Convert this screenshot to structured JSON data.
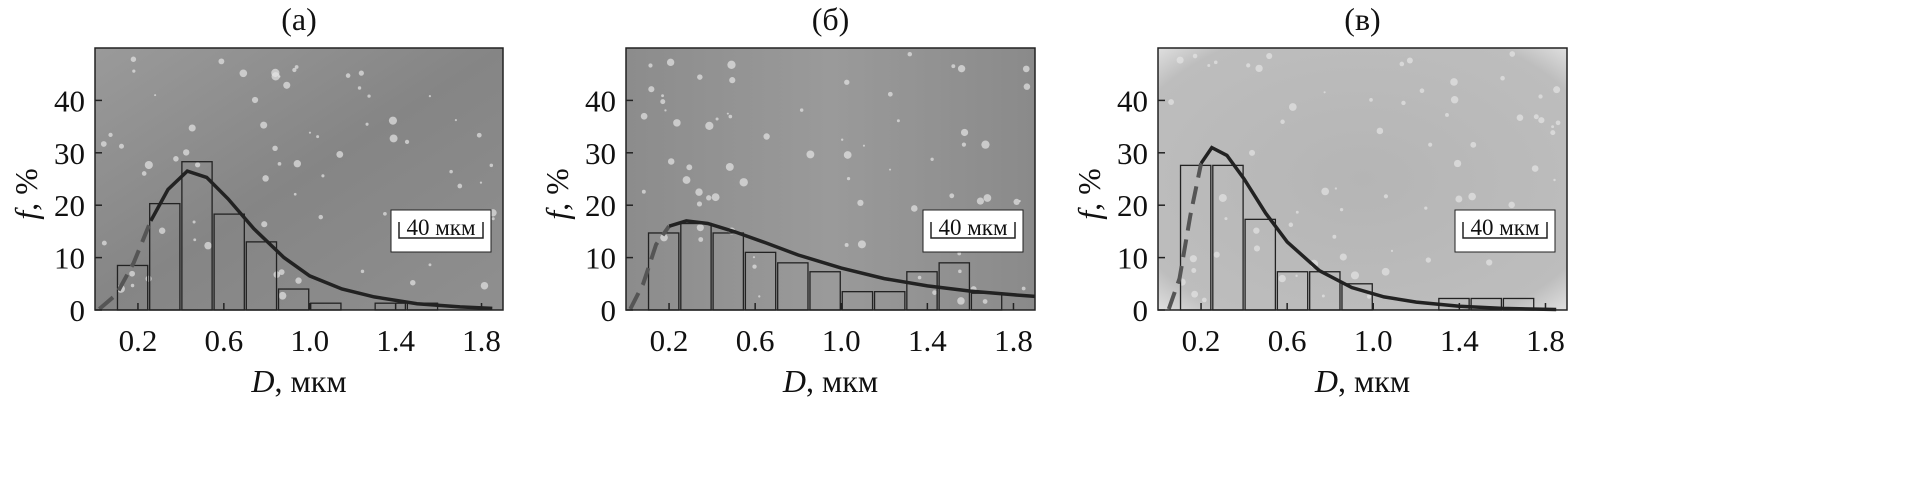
{
  "chart_data": [
    {
      "panel_label": "(а)",
      "type": "bar",
      "xlabel_var": "D",
      "xlabel_unit": ", мкм",
      "ylabel_var": "f",
      "ylabel_unit": ", %",
      "xlim": [
        0,
        1.9
      ],
      "ylim": [
        0,
        50
      ],
      "x_ticks": [
        "0.2",
        "0.6",
        "1.0",
        "1.4",
        "1.8"
      ],
      "y_ticks": [
        "0",
        "10",
        "20",
        "30",
        "40"
      ],
      "scale_bar": "40 мкм",
      "background": "micrograph",
      "bins": [
        {
          "from": 0.1,
          "to": 0.25,
          "value": 8.5
        },
        {
          "from": 0.25,
          "to": 0.4,
          "value": 20.3
        },
        {
          "from": 0.4,
          "to": 0.55,
          "value": 28.3
        },
        {
          "from": 0.55,
          "to": 0.7,
          "value": 18.3
        },
        {
          "from": 0.7,
          "to": 0.85,
          "value": 13
        },
        {
          "from": 0.85,
          "to": 1.0,
          "value": 4
        },
        {
          "from": 1.0,
          "to": 1.15,
          "value": 1.3
        },
        {
          "from": 1.3,
          "to": 1.45,
          "value": 1.3
        },
        {
          "from": 1.45,
          "to": 1.6,
          "value": 1.3
        }
      ],
      "fit_curve": {
        "x": [
          0.02,
          0.1,
          0.18,
          0.26,
          0.34,
          0.43,
          0.52,
          0.62,
          0.74,
          0.88,
          1.0,
          1.15,
          1.3,
          1.5,
          1.7,
          1.85
        ],
        "y": [
          0.2,
          3,
          9,
          17,
          23,
          26.5,
          25.3,
          21.2,
          15.5,
          10,
          6.5,
          4,
          2.5,
          1.2,
          0.6,
          0.3
        ]
      }
    },
    {
      "panel_label": "(б)",
      "type": "bar",
      "xlabel_var": "D",
      "xlabel_unit": ", мкм",
      "ylabel_var": "f",
      "ylabel_unit": ", %",
      "xlim": [
        0,
        1.9
      ],
      "ylim": [
        0,
        50
      ],
      "x_ticks": [
        "0.2",
        "0.6",
        "1.0",
        "1.4",
        "1.8"
      ],
      "y_ticks": [
        "0",
        "10",
        "20",
        "30",
        "40"
      ],
      "scale_bar": "40 мкм",
      "background": "micrograph",
      "bins": [
        {
          "from": 0.1,
          "to": 0.25,
          "value": 14.7
        },
        {
          "from": 0.25,
          "to": 0.4,
          "value": 16.5
        },
        {
          "from": 0.4,
          "to": 0.55,
          "value": 14.7
        },
        {
          "from": 0.55,
          "to": 0.7,
          "value": 11
        },
        {
          "from": 0.7,
          "to": 0.85,
          "value": 9
        },
        {
          "from": 0.85,
          "to": 1.0,
          "value": 7.3
        },
        {
          "from": 1.0,
          "to": 1.15,
          "value": 3.5
        },
        {
          "from": 1.15,
          "to": 1.3,
          "value": 3.5
        },
        {
          "from": 1.3,
          "to": 1.45,
          "value": 7.3
        },
        {
          "from": 1.45,
          "to": 1.6,
          "value": 9
        },
        {
          "from": 1.6,
          "to": 1.75,
          "value": 3.2
        }
      ],
      "fit_curve": {
        "x": [
          0.02,
          0.08,
          0.14,
          0.2,
          0.28,
          0.38,
          0.5,
          0.65,
          0.8,
          1.0,
          1.2,
          1.4,
          1.6,
          1.8,
          1.9
        ],
        "y": [
          0.2,
          5,
          12.5,
          16,
          17,
          16.5,
          15,
          12.8,
          10.5,
          8,
          6,
          4.6,
          3.6,
          2.9,
          2.6
        ]
      }
    },
    {
      "panel_label": "(в)",
      "type": "bar",
      "xlabel_var": "D",
      "xlabel_unit": ", мкм",
      "ylabel_var": "f",
      "ylabel_unit": ", %",
      "xlim": [
        0,
        1.9
      ],
      "ylim": [
        0,
        50
      ],
      "x_ticks": [
        "0.2",
        "0.6",
        "1.0",
        "1.4",
        "1.8"
      ],
      "y_ticks": [
        "0",
        "10",
        "20",
        "30",
        "40"
      ],
      "scale_bar": "40 мкм",
      "background": "micrograph",
      "bins": [
        {
          "from": 0.1,
          "to": 0.25,
          "value": 27.6
        },
        {
          "from": 0.25,
          "to": 0.4,
          "value": 27.6
        },
        {
          "from": 0.4,
          "to": 0.55,
          "value": 17.3
        },
        {
          "from": 0.55,
          "to": 0.7,
          "value": 7.3
        },
        {
          "from": 0.7,
          "to": 0.85,
          "value": 7.3
        },
        {
          "from": 0.85,
          "to": 1.0,
          "value": 5
        },
        {
          "from": 1.3,
          "to": 1.45,
          "value": 2.2
        },
        {
          "from": 1.45,
          "to": 1.6,
          "value": 2.2
        },
        {
          "from": 1.6,
          "to": 1.75,
          "value": 2.2
        }
      ],
      "fit_curve": {
        "x": [
          0.05,
          0.1,
          0.15,
          0.2,
          0.25,
          0.32,
          0.4,
          0.5,
          0.6,
          0.75,
          0.9,
          1.05,
          1.2,
          1.4,
          1.6,
          1.85
        ],
        "y": [
          0.2,
          6,
          18,
          28,
          31,
          29.5,
          25,
          18.5,
          13,
          7.5,
          4.3,
          2.5,
          1.5,
          0.7,
          0.3,
          0.1
        ]
      }
    }
  ]
}
